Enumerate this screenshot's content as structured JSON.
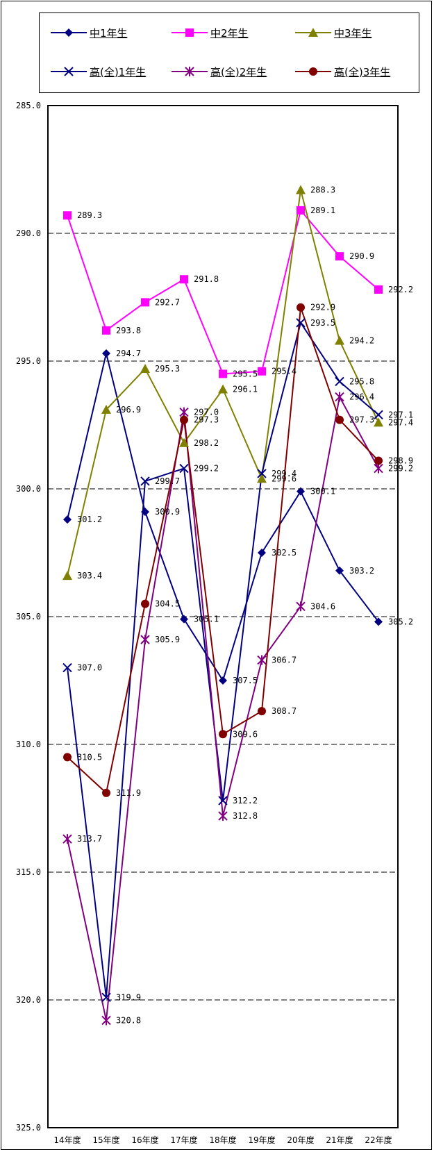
{
  "chart_data": {
    "type": "line",
    "categories": [
      "14年度",
      "15年度",
      "16年度",
      "17年度",
      "18年度",
      "19年度",
      "20年度",
      "21年度",
      "22年度"
    ],
    "ylim": [
      325.0,
      285.0
    ],
    "y_inverted": true,
    "y_ticks": [
      "285.0",
      "290.0",
      "295.0",
      "300.0",
      "305.0",
      "310.0",
      "315.0",
      "320.0",
      "325.0"
    ],
    "grid": "horizontal dashed",
    "legend_position": "top",
    "series": [
      {
        "name": "中1年生",
        "color": "#000080",
        "marker": "diamond",
        "values": [
          301.2,
          294.7,
          300.9,
          305.1,
          307.5,
          302.5,
          300.1,
          303.2,
          305.2
        ],
        "labels": [
          "301.2",
          "294.7",
          "300.9",
          "305.1",
          "307.5",
          "302.5",
          "300.1",
          "303.2",
          "305.2"
        ]
      },
      {
        "name": "中2年生",
        "color": "#ff00ff",
        "marker": "square",
        "values": [
          289.3,
          293.8,
          292.7,
          291.8,
          295.5,
          295.4,
          289.1,
          290.9,
          292.2
        ],
        "labels": [
          "289.3",
          "293.8",
          "292.7",
          "291.8",
          "295.5",
          "295.4",
          "289.1",
          "290.9",
          "292.2"
        ]
      },
      {
        "name": "中3年生",
        "color": "#808000",
        "marker": "triangle",
        "values": [
          303.4,
          296.9,
          295.3,
          298.2,
          296.1,
          299.6,
          288.3,
          294.2,
          297.4
        ],
        "labels": [
          "303.4",
          "296.9",
          "295.3",
          "298.2",
          "296.1",
          "299.6",
          "288.3",
          "294.2",
          "297.4"
        ]
      },
      {
        "name": "高(全)1年生",
        "color": "#000080",
        "marker": "x",
        "values": [
          307.0,
          319.9,
          299.7,
          299.2,
          312.2,
          299.4,
          293.5,
          295.8,
          297.1
        ],
        "labels": [
          "307.0",
          "319.9",
          "299.7",
          "299.2",
          "312.2",
          "299.4",
          "293.5",
          "295.8",
          "297.1"
        ]
      },
      {
        "name": "高(全)2年生",
        "color": "#800080",
        "marker": "star",
        "values": [
          313.7,
          320.8,
          305.9,
          297.0,
          312.8,
          306.7,
          304.6,
          296.4,
          299.2
        ],
        "labels": [
          "313.7",
          "320.8",
          "305.9",
          "297.0",
          "312.8",
          "306.7",
          "304.6",
          "296.4",
          "299.2"
        ]
      },
      {
        "name": "高(全)3年生",
        "color": "#800000",
        "marker": "circle",
        "values": [
          310.5,
          311.9,
          304.5,
          297.3,
          309.6,
          308.7,
          292.9,
          297.3,
          298.9
        ],
        "labels": [
          "310.5",
          "311.9",
          "304.5",
          "297.3",
          "309.6",
          "308.7",
          "292.9",
          "297.3",
          "298.9"
        ]
      }
    ]
  }
}
